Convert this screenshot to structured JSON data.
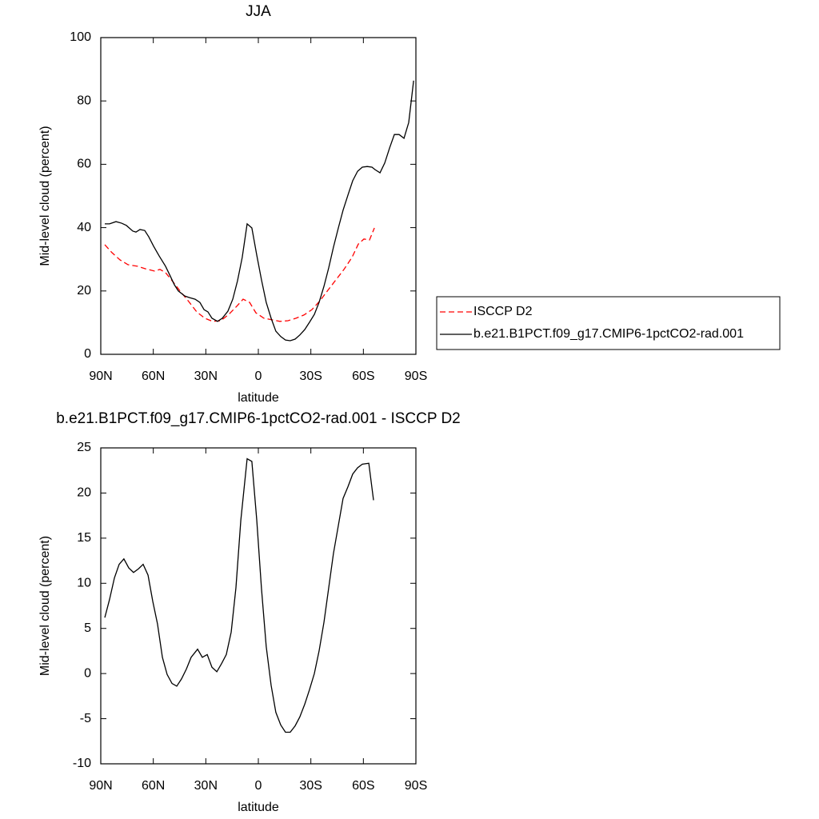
{
  "chart_data": [
    {
      "type": "line",
      "title": "JJA",
      "x_label": "latitude",
      "y_label": "Mid-level cloud (percent)",
      "xlim": [
        90,
        -90
      ],
      "xticks": [
        {
          "value": 90,
          "label": "90N"
        },
        {
          "value": 60,
          "label": "60N"
        },
        {
          "value": 30,
          "label": "30N"
        },
        0,
        {
          "value": -30,
          "label": "30S"
        },
        {
          "value": -60,
          "label": "60S"
        },
        {
          "value": -90,
          "label": "90S"
        }
      ],
      "ylim": [
        0,
        100
      ],
      "yticks": [
        0,
        20,
        40,
        60,
        80,
        100
      ],
      "legend": "right",
      "series": [
        {
          "name": "ISCCP D2",
          "color": "#ff0000",
          "line_style": "dashed",
          "x": [
            87.7,
            83.6,
            79,
            74.5,
            69,
            64.4,
            59.4,
            56.2,
            53,
            48.9,
            44.3,
            39.8,
            35.2,
            30.6,
            26.1,
            21.5,
            16.9,
            12.3,
            8.7,
            5,
            1.4,
            -3.2,
            -7.8,
            -12.3,
            -16.9,
            -21.5,
            -26,
            -30.6,
            -35.2,
            -39.7,
            -44.3,
            -48.9,
            -53.5,
            -57.1,
            -60.3,
            -63.5,
            -66.3
          ],
          "values": [
            34.6,
            32.1,
            29.8,
            28.3,
            27.8,
            27,
            26.3,
            26.8,
            25.8,
            23,
            19.7,
            16.7,
            13.4,
            11.4,
            10.4,
            10.6,
            12.6,
            15.2,
            17.4,
            16.4,
            13.1,
            11.4,
            10.9,
            10.4,
            10.6,
            11.4,
            12.4,
            14.1,
            16.9,
            20.2,
            23.5,
            26.8,
            30.6,
            34.8,
            36.4,
            36.1,
            39.9
          ]
        },
        {
          "name": "b.e21.B1PCT.f09_g17.CMIP6-1pctCO2-rad.001",
          "color": "#000000",
          "line_style": "solid",
          "x": [
            87.7,
            85,
            81.3,
            78.1,
            75.4,
            71.7,
            69.9,
            67.6,
            64.9,
            62.6,
            59.8,
            56.7,
            53,
            50.3,
            48,
            45.7,
            42,
            39.3,
            36.1,
            33.4,
            31,
            28.8,
            26.5,
            23.3,
            20.6,
            17.4,
            14.6,
            11.9,
            9.2,
            6.4,
            3.7,
            0.9,
            -1.8,
            -4.5,
            -7.3,
            -10,
            -12.8,
            -15.5,
            -18.2,
            -21,
            -23.7,
            -26.5,
            -29.2,
            -32,
            -34.7,
            -37.5,
            -40.2,
            -42.9,
            -45.7,
            -48.4,
            -51.2,
            -53.9,
            -56.7,
            -59.4,
            -62.2,
            -64.9,
            -66.7,
            -69.5,
            -72.2,
            -75,
            -77.7,
            -80.4,
            -83.2,
            -85.9,
            -88.7
          ],
          "values": [
            41.2,
            41.2,
            41.9,
            41.4,
            40.7,
            38.9,
            38.6,
            39.4,
            39.1,
            37.1,
            34.1,
            31.1,
            27.8,
            24.7,
            22,
            20,
            18.4,
            17.9,
            17.4,
            16.4,
            14.1,
            13.4,
            11.4,
            10.4,
            11.4,
            13.6,
            17.4,
            23.2,
            30.6,
            41.2,
            39.9,
            31.3,
            23.5,
            16.4,
            11.4,
            7.3,
            5.6,
            4.5,
            4.3,
            4.8,
            6.1,
            7.8,
            10.1,
            12.6,
            16.4,
            21.5,
            27.3,
            33.8,
            39.9,
            45.5,
            50.3,
            54.8,
            57.8,
            59.1,
            59.3,
            59.1,
            58.3,
            57.3,
            60.4,
            65.2,
            69.4,
            69.4,
            68.2,
            73.2,
            86.4
          ]
        }
      ]
    },
    {
      "type": "line",
      "title": "b.e21.B1PCT.f09_g17.CMIP6-1pctCO2-rad.001 - ISCCP D2",
      "x_label": "latitude",
      "y_label": "Mid-level cloud (percent)",
      "xlim": [
        90,
        -90
      ],
      "xticks": [
        {
          "value": 90,
          "label": "90N"
        },
        {
          "value": 60,
          "label": "60N"
        },
        {
          "value": 30,
          "label": "30N"
        },
        0,
        {
          "value": -30,
          "label": "30S"
        },
        {
          "value": -60,
          "label": "60S"
        },
        {
          "value": -90,
          "label": "90S"
        }
      ],
      "ylim": [
        -10,
        25
      ],
      "yticks": [
        -10,
        -5,
        0,
        5,
        10,
        15,
        20,
        25
      ],
      "color": "#000000",
      "x": [
        87.7,
        85,
        82.2,
        79.5,
        76.8,
        74,
        71.3,
        68.5,
        65.8,
        63,
        60.3,
        57.6,
        54.8,
        52.1,
        49.3,
        46.6,
        43.9,
        41.1,
        38.4,
        34.7,
        32,
        29.2,
        26.5,
        23.7,
        21,
        18.3,
        15.5,
        12.8,
        10,
        6.4,
        3.7,
        0.9,
        -1.8,
        -4.5,
        -7.3,
        -10,
        -12.8,
        -15.5,
        -18.2,
        -21,
        -23.7,
        -26.5,
        -29.2,
        -32,
        -34.7,
        -37.5,
        -40.2,
        -42.9,
        -45.7,
        -48.4,
        -51.2,
        -53.9,
        -56.7,
        -59.4,
        -63.1,
        -65.8
      ],
      "values": [
        6.2,
        8.2,
        10.6,
        12.1,
        12.7,
        11.7,
        11.2,
        11.6,
        12.1,
        10.9,
        8,
        5.5,
        1.8,
        -0.1,
        -1.1,
        -1.4,
        -0.6,
        0.5,
        1.8,
        2.7,
        1.8,
        2.1,
        0.7,
        0.2,
        1.1,
        2.1,
        4.6,
        9.5,
        17,
        23.8,
        23.5,
        17,
        9.4,
        3,
        -1.3,
        -4.3,
        -5.7,
        -6.5,
        -6.5,
        -5.8,
        -4.8,
        -3.4,
        -1.8,
        0,
        2.5,
        5.7,
        9.5,
        13.3,
        16.4,
        19.4,
        20.7,
        22.1,
        22.8,
        23.2,
        23.3,
        19.2
      ]
    }
  ]
}
